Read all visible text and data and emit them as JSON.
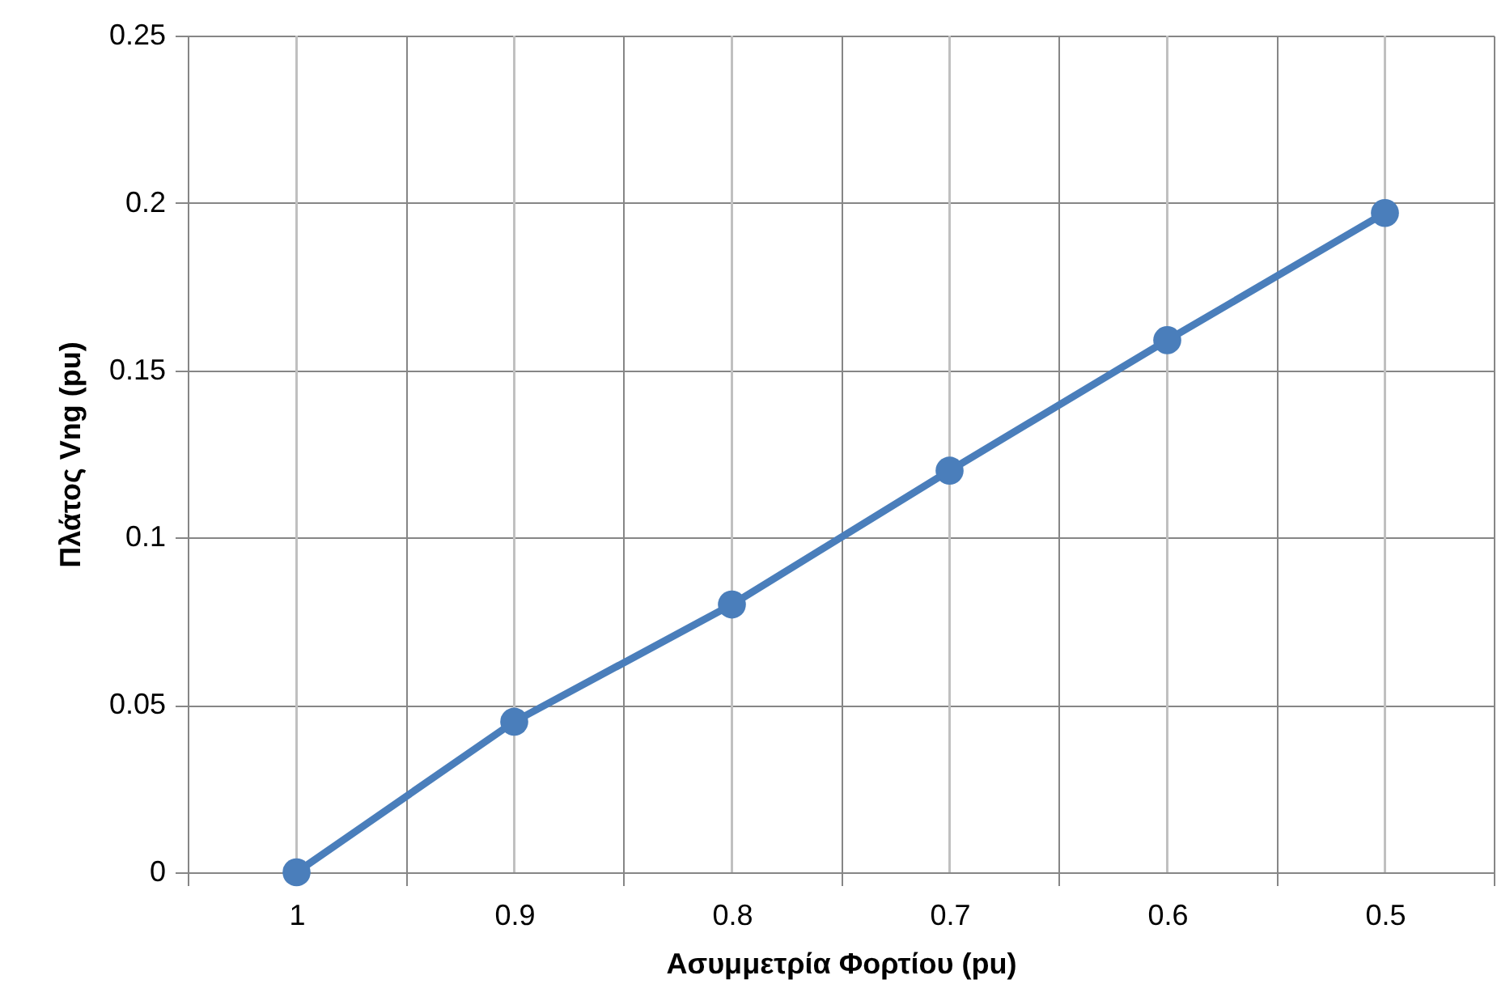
{
  "chart_data": {
    "type": "line",
    "xlabel": "Ασυμμετρία Φορτίου (pu)",
    "ylabel": "Πλάτος  Vng  (pu)",
    "categories": [
      "1",
      "0.9",
      "0.8",
      "0.7",
      "0.6",
      "0.5"
    ],
    "series": [
      {
        "color": "#4a7ebb",
        "values": [
          0,
          0.045,
          0.08,
          0.12,
          0.159,
          0.197
        ]
      }
    ],
    "ylim": [
      0,
      0.25
    ],
    "yticks": [
      {
        "value": 0,
        "label": "0"
      },
      0.05,
      {
        "value": 0.1,
        "label": "0.1"
      },
      0.15,
      {
        "value": 0.2,
        "label": "0.2"
      },
      0.25
    ],
    "grid": true,
    "marker": "circle",
    "line_style": "solid"
  }
}
